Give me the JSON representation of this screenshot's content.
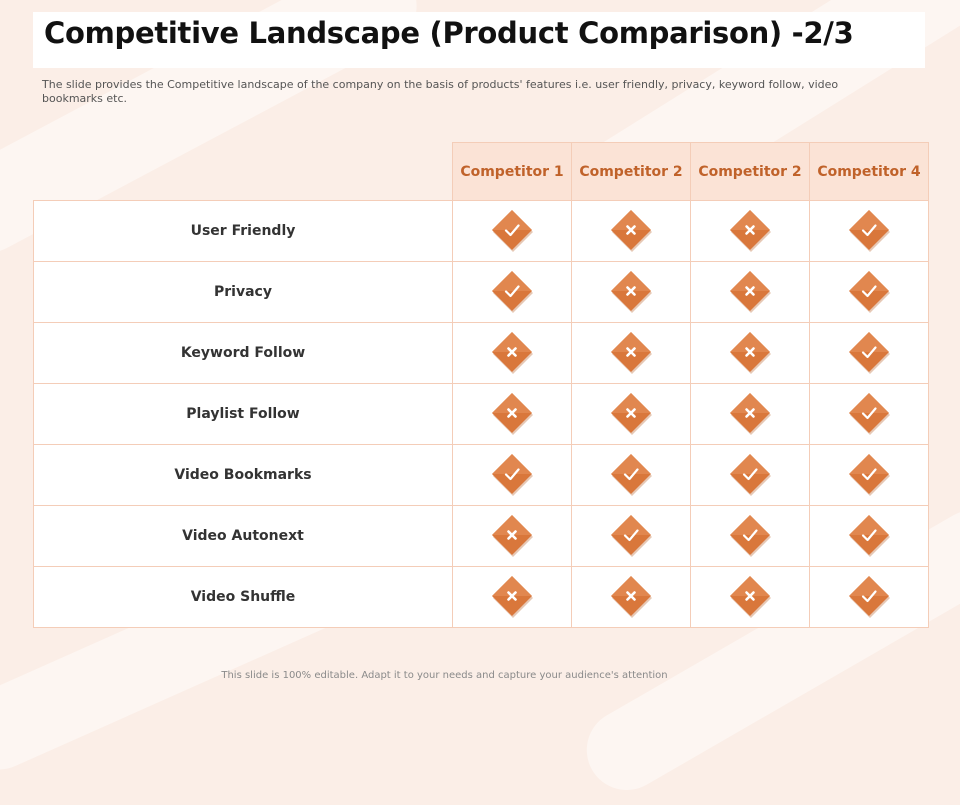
{
  "title": "Competitive Landscape (Product Comparison) -2/3",
  "subtitle": "The slide provides the Competitive landscape of the company on the basis of products' features i.e. user friendly, privacy, keyword follow, video bookmarks etc.",
  "footer": "This slide is 100% editable. Adapt it to your needs and capture your audience's attention",
  "colors": {
    "accent": "#c0622a",
    "header_bg": "#fbe3d6",
    "marker": "#d9773b"
  },
  "columns": [
    "Competitor 1",
    "Competitor 2",
    "Competitor 2",
    "Competitor 4"
  ],
  "rows": [
    {
      "feature": "User Friendly",
      "marks": [
        "check-icon",
        "cross-icon",
        "cross-icon",
        "check-icon"
      ]
    },
    {
      "feature": "Privacy",
      "marks": [
        "check-icon",
        "cross-icon",
        "cross-icon",
        "check-icon"
      ]
    },
    {
      "feature": "Keyword Follow",
      "marks": [
        "cross-icon",
        "cross-icon",
        "cross-icon",
        "check-icon"
      ]
    },
    {
      "feature": "Playlist Follow",
      "marks": [
        "cross-icon",
        "cross-icon",
        "cross-icon",
        "check-icon"
      ]
    },
    {
      "feature": "Video Bookmarks",
      "marks": [
        "check-icon",
        "check-icon",
        "check-icon",
        "check-icon"
      ]
    },
    {
      "feature": "Video Autonext",
      "marks": [
        "cross-icon",
        "check-icon",
        "check-icon",
        "check-icon"
      ]
    },
    {
      "feature": "Video Shuffle",
      "marks": [
        "cross-icon",
        "cross-icon",
        "cross-icon",
        "check-icon"
      ]
    }
  ]
}
